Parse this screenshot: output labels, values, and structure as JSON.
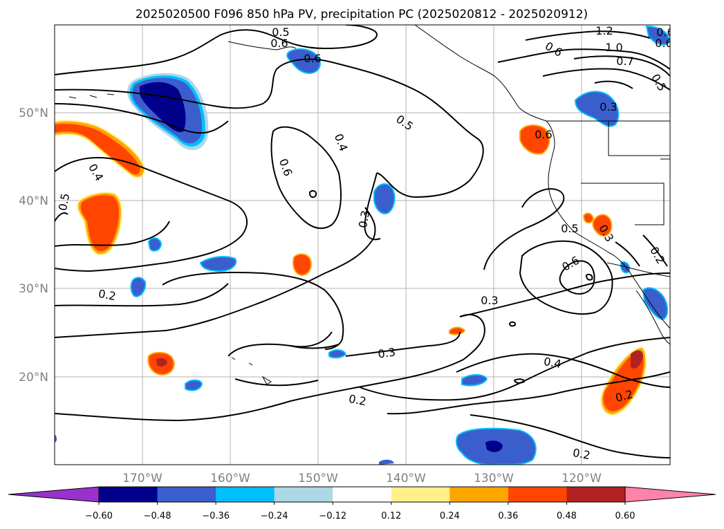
{
  "title": "2025020500 F096 850 hPa PV, precipitation PC (2025020812 - 2025020912)",
  "colors": {
    "dark_navy": "#00008b",
    "royal_blue": "#3a5fcd",
    "deep_sky": "#00bfff",
    "light_blue": "#add8e6",
    "white": "#ffffff",
    "light_yellow": "#fff08a",
    "orange": "#ffa500",
    "orange_red": "#ff4500",
    "firebrick": "#b22222",
    "pink": "#ff82ab",
    "purple": "#9932cc",
    "contour": "#000000",
    "grid": "#b0b0b0"
  },
  "axes": {
    "lat_labels": [
      "50°N",
      "40°N",
      "30°N",
      "20°N"
    ],
    "lon_labels": [
      "170°W",
      "160°W",
      "150°W",
      "140°W",
      "130°W",
      "120°W"
    ]
  },
  "contour_labels": [
    "0.5",
    "0.6",
    "1.2",
    "1.0",
    "0.7",
    "0.5",
    "0.6",
    "0.6",
    "0.5",
    "0.4",
    "0.6",
    "0.3",
    "0.4",
    "0.5",
    "0.3",
    "0.5",
    "0.6",
    "0.2",
    "0.3",
    "0.3",
    "0.2",
    "0.3",
    "0.4",
    "0.2",
    "0.2",
    "0.2",
    "0.6",
    "0.6",
    "0.6"
  ],
  "colorbar": {
    "ticks": [
      "−0.60",
      "−0.48",
      "−0.36",
      "−0.24",
      "−0.12",
      "0.12",
      "0.24",
      "0.36",
      "0.48",
      "0.60"
    ],
    "colors": [
      "#00008b",
      "#3a5fcd",
      "#00bfff",
      "#add8e6",
      "#ffffff",
      "#fff08a",
      "#ffa500",
      "#ff4500",
      "#b22222"
    ],
    "under_color": "#9932cc",
    "over_color": "#ff82ab"
  }
}
